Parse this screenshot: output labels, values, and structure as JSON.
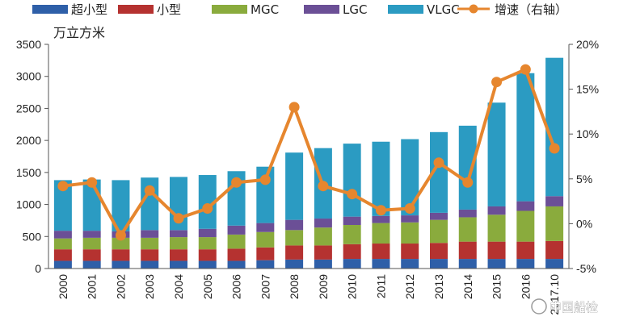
{
  "chart_data": {
    "type": "bar",
    "stacked": true,
    "unit_label": "万立方米",
    "categories": [
      "2000",
      "2001",
      "2002",
      "2003",
      "2004",
      "2005",
      "2006",
      "2007",
      "2008",
      "2009",
      "2010",
      "2011",
      "2012",
      "2013",
      "2014",
      "2015",
      "2016",
      "2017.10"
    ],
    "series": [
      {
        "name": "超小型",
        "color": "#2e5fa8",
        "values": [
          120,
          120,
          120,
          120,
          120,
          120,
          120,
          130,
          140,
          140,
          150,
          150,
          150,
          150,
          150,
          150,
          150,
          150
        ]
      },
      {
        "name": "小型",
        "color": "#b53230",
        "values": [
          180,
          180,
          180,
          180,
          180,
          180,
          190,
          200,
          220,
          220,
          230,
          240,
          240,
          250,
          270,
          270,
          270,
          280
        ]
      },
      {
        "name": "MGC",
        "color": "#8aab3d",
        "values": [
          170,
          180,
          180,
          180,
          190,
          190,
          220,
          240,
          240,
          280,
          300,
          320,
          330,
          360,
          380,
          420,
          480,
          540
        ]
      },
      {
        "name": "LGC",
        "color": "#6b4f96",
        "values": [
          120,
          110,
          100,
          120,
          110,
          130,
          140,
          140,
          160,
          140,
          130,
          110,
          110,
          110,
          120,
          130,
          150,
          160
        ]
      },
      {
        "name": "VLGC",
        "color": "#2b9bc2",
        "values": [
          790,
          800,
          800,
          820,
          830,
          840,
          850,
          880,
          1050,
          1100,
          1140,
          1160,
          1190,
          1260,
          1310,
          1620,
          2000,
          2160
        ]
      }
    ],
    "line_series": {
      "name": "增速（右轴）",
      "color": "#e6862e",
      "axis": "right",
      "values": [
        4.2,
        4.6,
        -1.3,
        3.7,
        0.6,
        1.7,
        4.6,
        4.9,
        13.0,
        4.2,
        3.3,
        1.5,
        1.7,
        6.8,
        4.6,
        15.8,
        17.2,
        8.4
      ]
    },
    "left_axis": {
      "min": 0,
      "max": 3500,
      "ticks": [
        "0",
        "500",
        "1000",
        "1500",
        "2000",
        "2500",
        "3000",
        "3500"
      ]
    },
    "right_axis": {
      "min": -5,
      "max": 20,
      "ticks": [
        "-5%",
        "0%",
        "5%",
        "10%",
        "15%",
        "20%"
      ]
    },
    "legend_position": "top"
  },
  "watermark": "中国船检"
}
